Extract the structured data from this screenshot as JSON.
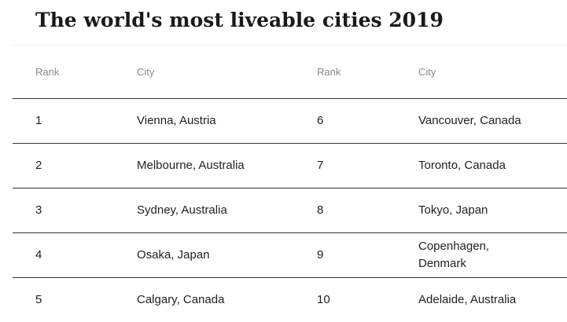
{
  "title": "The world's most liveable cities 2019",
  "table": {
    "headers": [
      "Rank",
      "City",
      "Rank",
      "City"
    ],
    "rows": [
      {
        "rank_left": "1",
        "city_left": "Vienna, Austria",
        "rank_right": "6",
        "city_right": "Vancouver, Canada"
      },
      {
        "rank_left": "2",
        "city_left": "Melbourne, Australia",
        "rank_right": "7",
        "city_right": "Toronto, Canada"
      },
      {
        "rank_left": "3",
        "city_left": "Sydney, Australia",
        "rank_right": "8",
        "city_right": "Tokyo, Japan"
      },
      {
        "rank_left": "4",
        "city_left": "Osaka, Japan",
        "rank_right": "9",
        "city_right": "Copenhagen, Denmark"
      },
      {
        "rank_left": "5",
        "city_left": "Calgary, Canada",
        "rank_right": "10",
        "city_right": "Adelaide, Australia"
      }
    ]
  }
}
